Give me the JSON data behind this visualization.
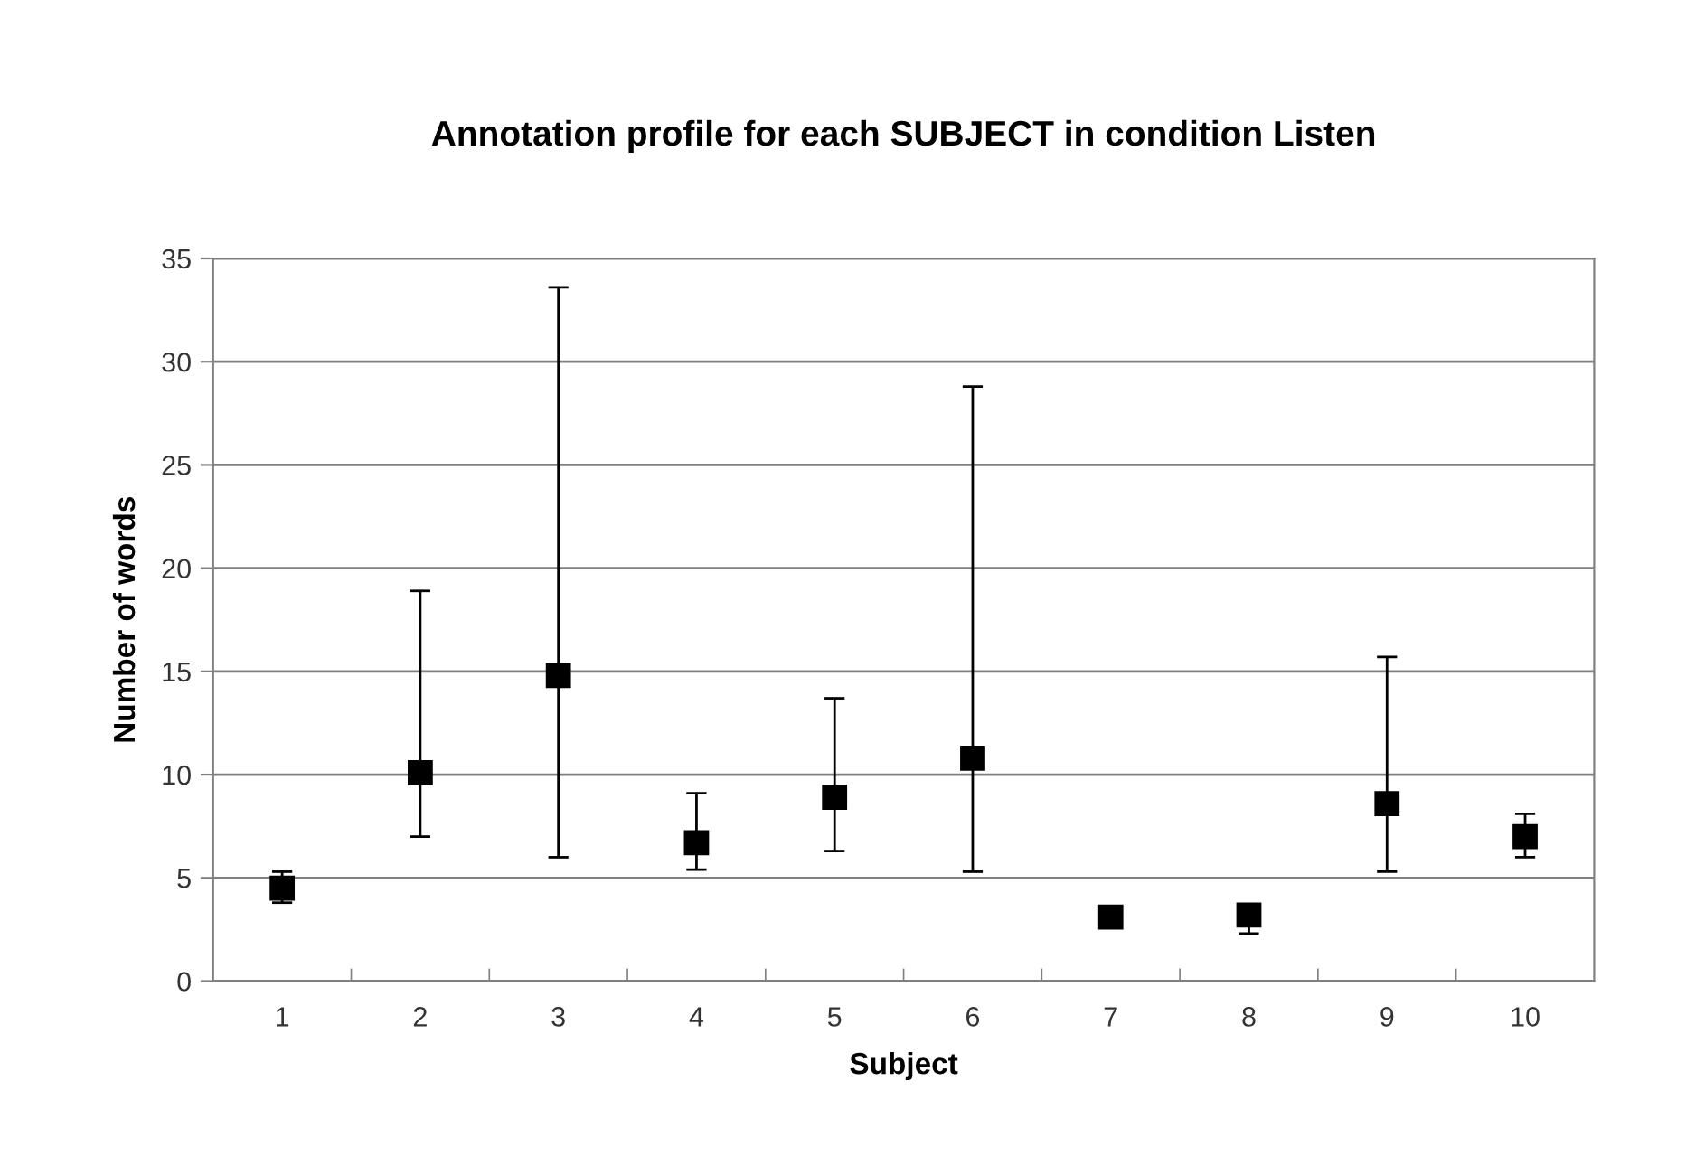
{
  "chart_data": {
    "type": "scatter",
    "title": "Annotation profile for each SUBJECT in condition Listen",
    "xlabel": "Subject",
    "ylabel": "Number of words",
    "categories": [
      "1",
      "2",
      "3",
      "4",
      "5",
      "6",
      "7",
      "8",
      "9",
      "10"
    ],
    "series": [
      {
        "color": "#000000",
        "values": [
          4.5,
          10.1,
          14.8,
          6.7,
          8.9,
          10.8,
          3.1,
          3.2,
          8.6,
          7.0
        ],
        "errors": [
          [
            3.8,
            5.3
          ],
          [
            7.0,
            18.9
          ],
          [
            6.0,
            33.6
          ],
          [
            5.4,
            9.1
          ],
          [
            6.3,
            13.7
          ],
          [
            5.3,
            28.8
          ],
          null,
          [
            2.3,
            3.6
          ],
          [
            5.3,
            15.7
          ],
          [
            6.0,
            8.1
          ]
        ]
      }
    ],
    "ylim": [
      0,
      35
    ],
    "yticks": [
      0,
      5,
      10,
      15,
      20,
      25,
      30,
      35
    ],
    "grid": "y",
    "marker": "square",
    "legend": false
  }
}
